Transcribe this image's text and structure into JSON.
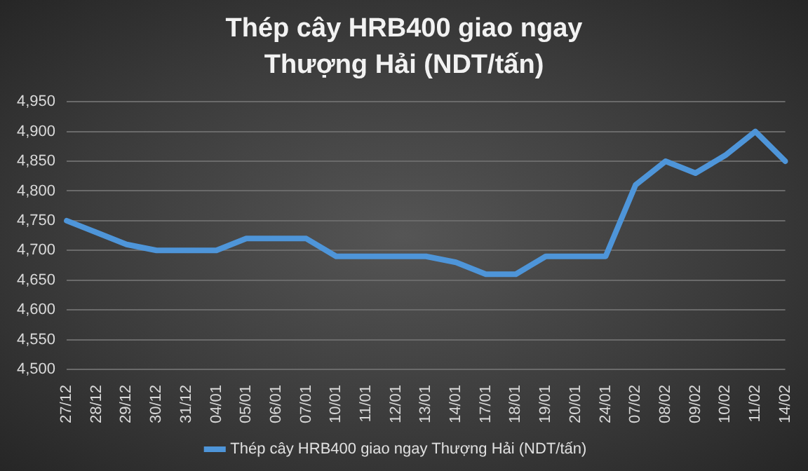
{
  "chart_data": {
    "type": "line",
    "title": "Thép cây HRB400 giao ngay Thượng Hải (NDT/tấn)",
    "categories": [
      "27/12",
      "28/12",
      "29/12",
      "30/12",
      "31/12",
      "04/01",
      "05/01",
      "06/01",
      "07/01",
      "10/01",
      "11/01",
      "12/01",
      "13/01",
      "14/01",
      "17/01",
      "18/01",
      "19/01",
      "20/01",
      "24/01",
      "07/02",
      "08/02",
      "09/02",
      "10/02",
      "11/02",
      "14/02"
    ],
    "series": [
      {
        "name": "Thép cây HRB400 giao ngay Thượng Hải (NDT/tấn)",
        "color": "#4e95d9",
        "values": [
          4750,
          4730,
          4710,
          4700,
          4700,
          4700,
          4720,
          4720,
          4720,
          4690,
          4690,
          4690,
          4690,
          4680,
          4660,
          4660,
          4690,
          4690,
          4690,
          4810,
          4850,
          4830,
          4860,
          4900,
          4850
        ]
      }
    ],
    "ylim": [
      4500,
      4950
    ],
    "yticks": [
      {
        "value": 4500,
        "label": "4,500"
      },
      {
        "value": 4550,
        "label": "4,550"
      },
      {
        "value": 4600,
        "label": "4,600"
      },
      {
        "value": 4650,
        "label": "4,650"
      },
      {
        "value": 4700,
        "label": "4,700"
      },
      {
        "value": 4750,
        "label": "4,750"
      },
      {
        "value": 4800,
        "label": "4,800"
      },
      {
        "value": 4850,
        "label": "4,850"
      },
      {
        "value": 4900,
        "label": "4,900"
      },
      {
        "value": 4950,
        "label": "4,950"
      }
    ],
    "grid": "y",
    "legend": "bottom",
    "marker": "none",
    "line_style": "solid"
  }
}
